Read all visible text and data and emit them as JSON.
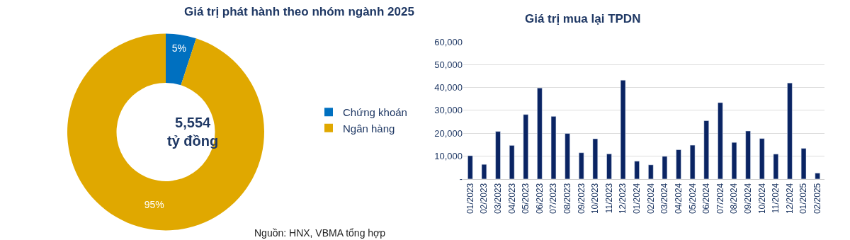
{
  "chart_data": [
    {
      "type": "donut",
      "title": "Giá trị phát hành theo nhóm ngành 2025",
      "categories": [
        "Chứng khoán",
        "Ngân hàng"
      ],
      "values": [
        5,
        95
      ],
      "colors": [
        "#0070c0",
        "#e0a800"
      ],
      "value_labels": [
        "5%",
        "95%"
      ],
      "legend": "right",
      "annotations": [
        "5,554\ntỷ đồng",
        "Nguồn: HNX, VBMA tổng hợp"
      ]
    },
    {
      "type": "bar",
      "title": "Giá trị mua lại TPDN",
      "categories": [
        "01/2023",
        "02/2023",
        "03/2023",
        "04/2023",
        "05/2023",
        "06/2023",
        "07/2023",
        "08/2023",
        "09/2023",
        "10/2023",
        "11/2023",
        "12/2023",
        "01/2024",
        "02/2024",
        "03/2024",
        "04/2024",
        "05/2024",
        "06/2024",
        "07/2024",
        "08/2024",
        "09/2024",
        "10/2024",
        "11/2024",
        "12/2024",
        "01/2025",
        "02/2025"
      ],
      "values": [
        10200,
        6400,
        20800,
        14700,
        28200,
        39800,
        27400,
        19900,
        11500,
        17600,
        11000,
        43200,
        7800,
        6200,
        9900,
        12800,
        14800,
        25500,
        33400,
        16000,
        21000,
        17700,
        10900,
        42000,
        13400,
        2600
      ],
      "color": "#0a2463",
      "ylim": [
        0,
        60000
      ],
      "yticks": [
        {
          "value": 0,
          "label": "-"
        },
        {
          "value": 10000,
          "label": "10,000"
        },
        {
          "value": 20000,
          "label": "20,000"
        },
        {
          "value": 30000,
          "label": "30,000"
        },
        {
          "value": 40000,
          "label": "40,000"
        },
        {
          "value": 50000,
          "label": "50,000"
        },
        {
          "value": 60000,
          "label": "60,000"
        }
      ],
      "grid": "y",
      "legend": false
    }
  ]
}
